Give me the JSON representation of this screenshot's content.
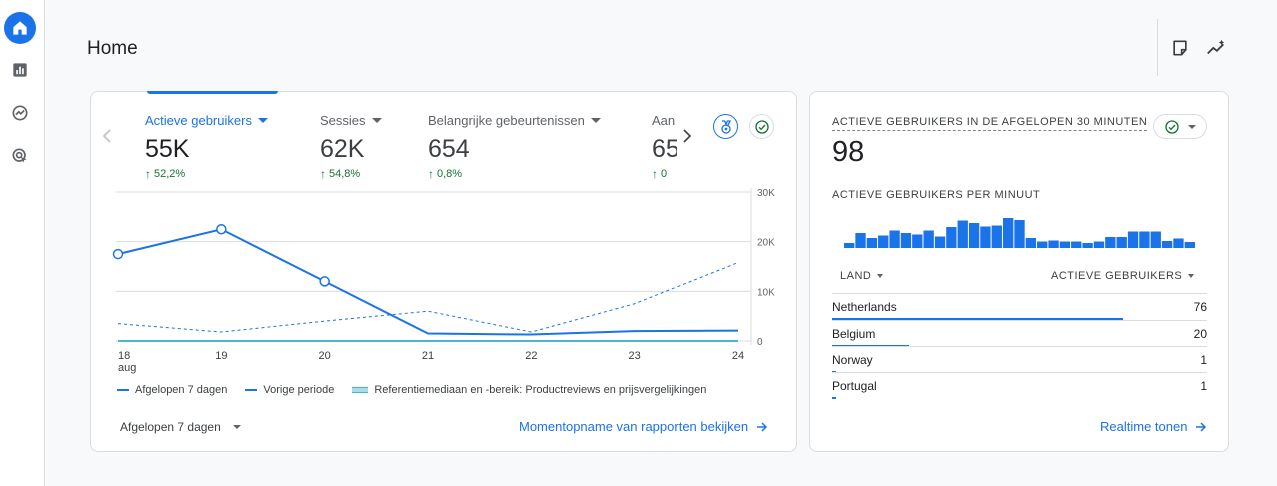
{
  "page": {
    "title": "Home"
  },
  "rail": {
    "items": [
      {
        "name": "home-icon",
        "active": true
      },
      {
        "name": "reports-icon",
        "active": false
      },
      {
        "name": "explore-icon",
        "active": false
      },
      {
        "name": "advertising-icon",
        "active": false
      }
    ]
  },
  "toolbar": {
    "icons": [
      "notes-icon",
      "insights-icon"
    ]
  },
  "main_card": {
    "metrics": [
      {
        "label": "Actieve gebruikers",
        "value": "55K",
        "delta": "52,2%",
        "active": true
      },
      {
        "label": "Sessies",
        "value": "62K",
        "delta": "54,8%",
        "active": false
      },
      {
        "label": "Belangrijke gebeurtenissen",
        "value": "654",
        "delta": "0,8%",
        "active": false
      },
      {
        "label": "Aan",
        "value": "65",
        "delta": "0",
        "active": false
      }
    ],
    "legend": {
      "current": "Afgelopen 7 dagen",
      "previous": "Vorige periode",
      "benchmark": "Referentiemediaan en -bereik: Productreviews en prijsvergelijkingen"
    },
    "period_select": "Afgelopen 7 dagen",
    "report_link": "Momentopname van rapporten bekijken"
  },
  "chart_data": {
    "type": "line",
    "x": [
      "18",
      "19",
      "20",
      "21",
      "22",
      "23",
      "24"
    ],
    "x_sublabel": "aug",
    "y_ticks": [
      "30K",
      "20K",
      "10K",
      "0"
    ],
    "ylim": [
      0,
      30000
    ],
    "series": [
      {
        "name": "Afgelopen 7 dagen",
        "style": "solid",
        "values": [
          17500,
          22500,
          12000,
          1500,
          1300,
          2000,
          2100
        ]
      },
      {
        "name": "Vorige periode",
        "style": "dashed",
        "values": [
          3500,
          1800,
          4000,
          6000,
          1800,
          7500,
          15800
        ]
      },
      {
        "name": "Referentiemediaan en -bereik: Productreviews en prijsvergelijkingen",
        "style": "band",
        "values": [
          0,
          0,
          0,
          0,
          0,
          0,
          0
        ]
      }
    ],
    "colors": {
      "line": "#1a73e8",
      "band": "#4ab8c9",
      "grid": "#dadce0"
    }
  },
  "realtime_card": {
    "title": "ACTIEVE GEBRUIKERS IN DE AFGELOPEN 30 MINUTEN",
    "value": "98",
    "per_minute_title": "ACTIEVE GEBRUIKERS PER MINUUT",
    "per_minute": [
      1,
      3,
      2,
      2.5,
      3.5,
      3,
      2.7,
      3.5,
      2.3,
      4.2,
      5.5,
      5,
      4.3,
      4.5,
      6,
      5.6,
      2,
      1.3,
      1.5,
      1.3,
      1.3,
      1,
      1.3,
      2.2,
      2.2,
      3.3,
      3.3,
      3.3,
      1.4,
      1.9,
      1.2
    ],
    "col_country": "LAND",
    "col_users": "ACTIEVE GEBRUIKERS",
    "rows": [
      {
        "country": "Netherlands",
        "users": "76",
        "share": 0.776
      },
      {
        "country": "Belgium",
        "users": "20",
        "share": 0.204
      },
      {
        "country": "Norway",
        "users": "1",
        "share": 0.01
      },
      {
        "country": "Portugal",
        "users": "1",
        "share": 0.01
      }
    ],
    "link": "Realtime tonen"
  }
}
